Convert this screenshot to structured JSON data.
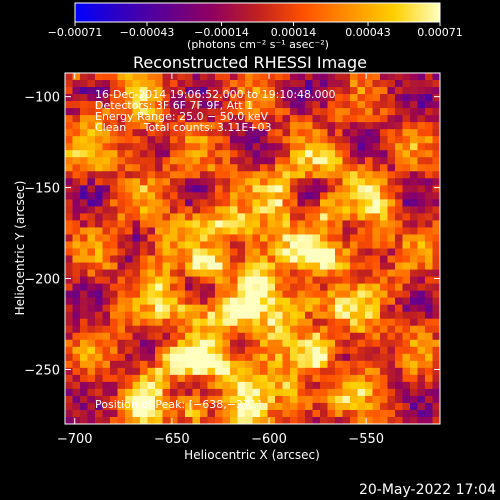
{
  "chart_data": {
    "type": "heatmap",
    "title": "Reconstructed RHESSI Image",
    "xlabel": "Heliocentric X (arcsec)",
    "ylabel": "Heliocentric Y (arcsec)",
    "xlim": [
      -705,
      -512
    ],
    "ylim": [
      -280,
      -87
    ],
    "x_ticks": [
      -700,
      -650,
      -600,
      -550
    ],
    "x_tick_labels": [
      "−700",
      "−650",
      "−600",
      "−550"
    ],
    "y_ticks": [
      -100,
      -150,
      -200,
      -250
    ],
    "y_tick_labels": [
      "−100",
      "−150",
      "−200",
      "−250"
    ],
    "colorbar": {
      "range": [
        -0.00071,
        0.00071
      ],
      "ticks": [
        -0.00071,
        -0.00043,
        -0.00014,
        0.00014,
        0.00043,
        0.00071
      ],
      "tick_labels": [
        "−0.00071",
        "−0.00043",
        "−0.00014",
        "0.00014",
        "0.00043",
        "0.00071"
      ],
      "units_label": "(photons cm⁻² s⁻¹ asec⁻²)",
      "colors": [
        "#0000ff",
        "#3000c0",
        "#600090",
        "#900060",
        "#c02020",
        "#ff5000",
        "#ff9000",
        "#ffd000",
        "#ffffc0"
      ]
    },
    "annotations": [
      "16-Dec-2014 19:06:52.000 to 19:10:48.000",
      "Detectors: 3F 6F 7F 9F, Att 1",
      "Energy Range: 25.0 − 50.0 keV",
      "Clean     Total counts: 3.11E+03"
    ],
    "peak_label": "Position of Peak: [−638,−271]",
    "sources": [
      {
        "x": -631,
        "y": -194,
        "peak": 0.00065
      },
      {
        "x": -570,
        "y": -163,
        "peak": 0.0006
      },
      {
        "x": -575,
        "y": -240,
        "peak": 0.00058
      },
      {
        "x": -638,
        "y": -271,
        "peak": 0.00071
      },
      {
        "x": -690,
        "y": -110,
        "peak": 0.00045
      }
    ]
  },
  "footer": {
    "timestamp": "20-May-2022 17:04"
  }
}
